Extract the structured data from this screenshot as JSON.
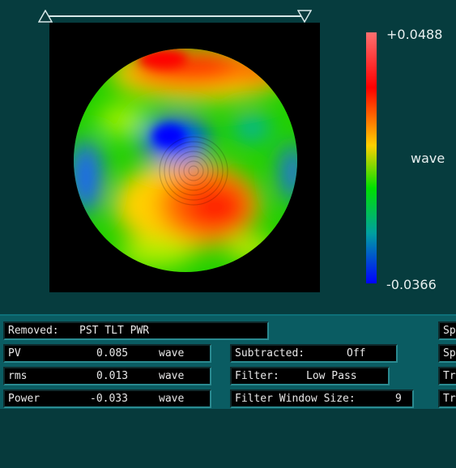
{
  "map": {
    "colorbar_max": "+0.0488",
    "colorbar_min": "-0.0366",
    "colorbar_unit": "wave",
    "colors": [
      "#ff6e6e",
      "#ff0000",
      "#ffaa00",
      "#ffff00",
      "#00e000",
      "#00c8c8",
      "#0000ff"
    ]
  },
  "panel": {
    "removed_label": "Removed:",
    "removed_value": "PST TLT PWR",
    "pv_label": "PV",
    "pv_value": "0.085",
    "pv_unit": "wave",
    "rms_label": "rms",
    "rms_value": "0.013",
    "rms_unit": "wave",
    "power_label": "Power",
    "power_value": "-0.033",
    "power_unit": "wave",
    "subtracted_label": "Subtracted:",
    "subtracted_value": "Off",
    "filter_label": "Filter:",
    "filter_value": "Low Pass",
    "filter_window_label": "Filter Window Size:",
    "filter_window_value": "9",
    "cut_fields": [
      "Sp",
      "Sp",
      "Tr",
      "Tr"
    ]
  }
}
